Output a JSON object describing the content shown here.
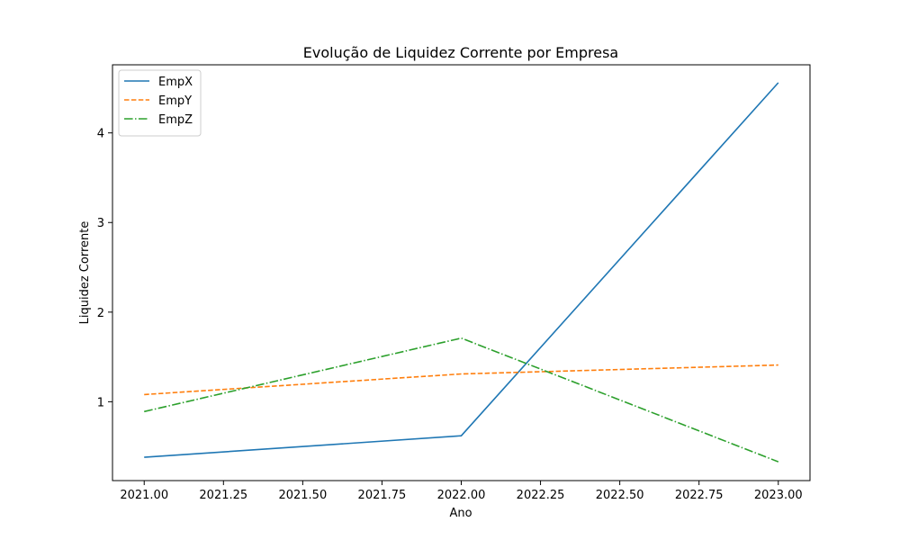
{
  "chart_data": {
    "type": "line",
    "title": "Evolução de Liquidez Corrente por Empresa",
    "xlabel": "Ano",
    "ylabel": "Liquidez Corrente",
    "xlim": [
      2020.9,
      2023.1
    ],
    "ylim": [
      0.12,
      4.76
    ],
    "x_ticks": [
      "2021.00",
      "2021.25",
      "2021.50",
      "2021.75",
      "2022.00",
      "2022.25",
      "2022.50",
      "2022.75",
      "2023.00"
    ],
    "y_ticks": [
      "1",
      "2",
      "3",
      "4"
    ],
    "grid": false,
    "legend_position": "top-left",
    "x": [
      2021,
      2022,
      2023
    ],
    "series": [
      {
        "name": "EmpX",
        "values": [
          0.38,
          0.62,
          4.56
        ],
        "color": "#1f77b4",
        "style": "solid"
      },
      {
        "name": "EmpY",
        "values": [
          1.08,
          1.31,
          1.41
        ],
        "color": "#ff7f0e",
        "style": "dashed"
      },
      {
        "name": "EmpZ",
        "values": [
          0.89,
          1.71,
          0.33
        ],
        "color": "#2ca02c",
        "style": "dashdot"
      }
    ]
  }
}
